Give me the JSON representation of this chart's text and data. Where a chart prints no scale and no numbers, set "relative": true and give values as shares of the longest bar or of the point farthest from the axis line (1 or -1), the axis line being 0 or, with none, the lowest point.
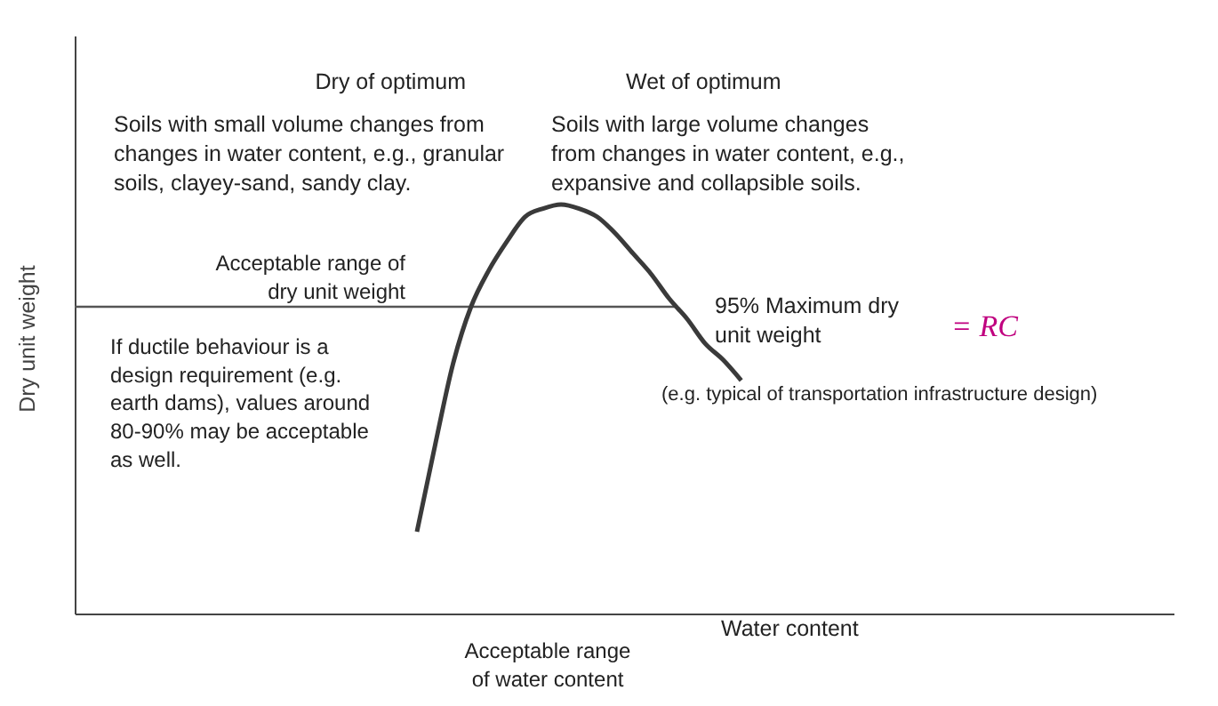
{
  "chart_data": {
    "type": "line",
    "relative": true,
    "xlabel": "Water content",
    "ylabel": "Dry unit weight",
    "categories": [
      null,
      null,
      null,
      null,
      null,
      null,
      null,
      null,
      null,
      null,
      null,
      null,
      null,
      null,
      null,
      null,
      null,
      null,
      null,
      null,
      null,
      null,
      null,
      null,
      null,
      null,
      null,
      null,
      null,
      null,
      null,
      null,
      null,
      null,
      null,
      null,
      null,
      null,
      null,
      null,
      null,
      null,
      null,
      null,
      null,
      null,
      null,
      null,
      null,
      null,
      null,
      null,
      null,
      null,
      null,
      null,
      null,
      null,
      null,
      null,
      null,
      null
    ],
    "series": [
      {
        "color": "#3a3a3a",
        "values": [
          null,
          null,
          null,
          null,
          null,
          null,
          null,
          null,
          null,
          null,
          null,
          null,
          null,
          null,
          null,
          null,
          null,
          null,
          null,
          0.2,
          0.41,
          0.61,
          0.75,
          0.84,
          0.91,
          0.97,
          0.99,
          1,
          0.99,
          0.97,
          0.93,
          0.88,
          0.83,
          0.77,
          0.72,
          0.66,
          0.62,
          0.57,
          null,
          null,
          null,
          null,
          null,
          null,
          null,
          null,
          null,
          null,
          null,
          null,
          null,
          null,
          null,
          null,
          null,
          null,
          null,
          null,
          null,
          null,
          null,
          null
        ]
      }
    ],
    "ref_lines": [
      {
        "axis": "y",
        "value": 0.75,
        "label": "95% Maximum dry\nunit weight",
        "color": "#555555"
      }
    ],
    "annotations": [
      "Dry of optimum",
      "Wet of optimum",
      "Soils with small volume changes from\nchanges in water content, e.g., granular\nsoils, clayey-sand, sandy clay.",
      "Soils with large volume changes\nfrom changes in water content, e.g.,\nexpansive and collapsible soils.",
      "Acceptable range of\ndry unit weight",
      "= RC",
      "(e.g. typical of transportation infrastructure design)",
      "If ductile behaviour is a\ndesign requirement (e.g.\nearth dams), values around\n80-90% may be acceptable\nas well.",
      "Acceptable range\nof water content"
    ]
  }
}
